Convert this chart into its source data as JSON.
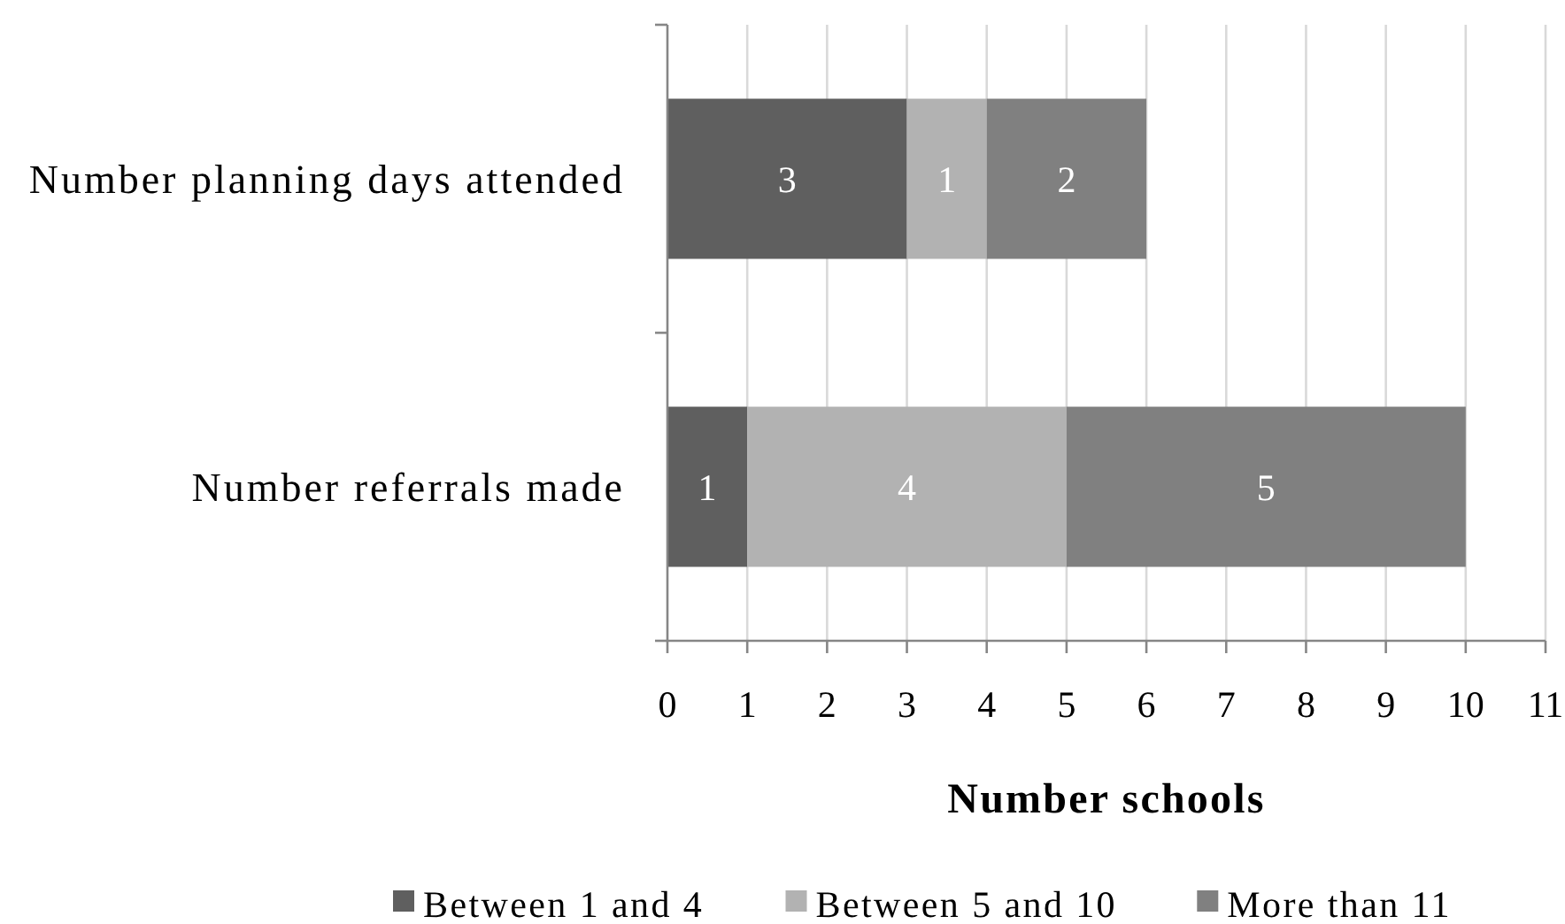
{
  "chart_data": {
    "type": "bar",
    "orientation": "horizontal",
    "stacked": true,
    "xlabel": "Number schools",
    "categories": [
      "Number planning days attended",
      "Number referrals made"
    ],
    "series": [
      {
        "name": "Between 1 and 4",
        "color": "#5f5f5f",
        "values": [
          3,
          1
        ]
      },
      {
        "name": "Between 5 and 10",
        "color": "#b2b2b2",
        "values": [
          1,
          4
        ]
      },
      {
        "name": "More than 11",
        "color": "#808080",
        "values": [
          2,
          5
        ]
      }
    ],
    "xlim": [
      0,
      11
    ],
    "xticks": [
      0,
      1,
      2,
      3,
      4,
      5,
      6,
      7,
      8,
      9,
      10,
      11
    ],
    "grid": "x",
    "legend": "bottom",
    "data_labels": true
  }
}
